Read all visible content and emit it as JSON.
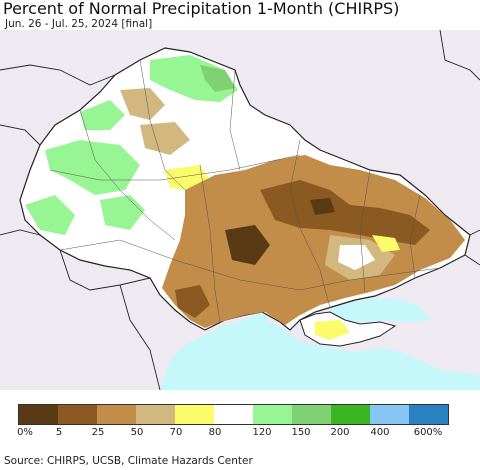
{
  "header": {
    "title": "Percent of Normal Precipitation 1-Month (CHIRPS)",
    "subtitle": "Jun. 26 - Jul. 25, 2024 [final]"
  },
  "legend": {
    "colors": [
      "#5a3a14",
      "#8b5a22",
      "#c28c49",
      "#d2b87e",
      "#fbfb6b",
      "#ffffff",
      "#98f593",
      "#7fd172",
      "#3bb521",
      "#86c6f5",
      "#2a81c2"
    ],
    "labels": [
      "0%",
      "5",
      "25",
      "50",
      "70",
      "80",
      "120",
      "150",
      "200",
      "400",
      "600%"
    ]
  },
  "footer": {
    "source": "Source: CHIRPS, UCSB, Climate Hazards Center"
  },
  "map_colors": {
    "land_outside": "#efeaf1",
    "sea": "#c4f8fb",
    "border": "#222222"
  }
}
